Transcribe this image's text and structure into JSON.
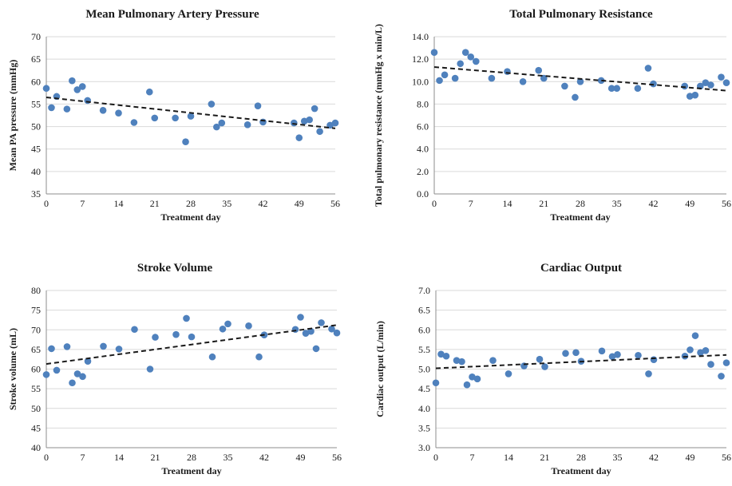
{
  "chart_data": [
    {
      "type": "scatter",
      "title": "Mean Pulmonary Artery Pressure",
      "xlabel": "Treatment day",
      "ylabel": "Mean PA pressure (mmHg)",
      "xlim": [
        0,
        56
      ],
      "ylim": [
        35,
        70
      ],
      "xticks": [
        0,
        7,
        14,
        21,
        28,
        35,
        42,
        49,
        56
      ],
      "xtick_labels": [
        "0",
        "7",
        "14",
        "21",
        "28",
        "35",
        "42",
        "49",
        "56"
      ],
      "yticks": [
        35,
        40,
        45,
        50,
        55,
        60,
        65,
        70
      ],
      "ytick_labels": [
        "35",
        "40",
        "45",
        "50",
        "55",
        "60",
        "65",
        "70"
      ],
      "grid": "horizontal",
      "x": [
        0,
        1,
        2,
        4,
        5,
        6,
        7,
        8,
        11,
        14,
        17,
        20,
        21,
        25,
        27,
        28,
        32,
        33,
        34,
        39,
        41,
        42,
        48,
        49,
        50,
        51,
        52,
        53,
        55,
        56
      ],
      "y": [
        58.5,
        54.2,
        56.7,
        53.9,
        60.2,
        58.2,
        58.9,
        55.8,
        53.6,
        53.0,
        50.9,
        57.7,
        51.9,
        51.9,
        46.6,
        52.3,
        55.0,
        49.9,
        50.8,
        50.4,
        54.6,
        51.0,
        50.8,
        47.5,
        51.2,
        51.5,
        54.0,
        48.9,
        50.3,
        50.8
      ],
      "trendline": {
        "x": [
          0,
          56
        ],
        "y": [
          56.5,
          49.6
        ]
      }
    },
    {
      "type": "scatter",
      "title": "Total Pulmonary Resistance",
      "xlabel": "Treatment day",
      "ylabel": "Total pulmonary resistance (mmHg x min/L)",
      "xlim": [
        0,
        56
      ],
      "ylim": [
        0,
        14
      ],
      "xticks": [
        0,
        7,
        14,
        21,
        28,
        35,
        42,
        49,
        56
      ],
      "xtick_labels": [
        "0",
        "7",
        "14",
        "21",
        "28",
        "35",
        "42",
        "49",
        "56"
      ],
      "yticks": [
        0,
        2,
        4,
        6,
        8,
        10,
        12,
        14
      ],
      "ytick_labels": [
        "0.0",
        "2.0",
        "4.0",
        "6.0",
        "8.0",
        "10.0",
        "12.0",
        "14.0"
      ],
      "grid": "horizontal",
      "x": [
        0,
        1,
        2,
        4,
        5,
        6,
        7,
        8,
        11,
        14,
        17,
        20,
        21,
        25,
        27,
        28,
        32,
        34,
        35,
        39,
        41,
        42,
        48,
        49,
        50,
        51,
        52,
        53,
        55,
        56
      ],
      "y": [
        12.6,
        10.1,
        10.6,
        10.3,
        11.6,
        12.6,
        12.2,
        11.8,
        10.3,
        10.9,
        10.0,
        11.0,
        10.3,
        9.6,
        8.6,
        10.0,
        10.1,
        9.4,
        9.4,
        9.4,
        11.2,
        9.8,
        9.6,
        8.7,
        8.8,
        9.6,
        9.9,
        9.7,
        10.4,
        9.9
      ],
      "trendline": {
        "x": [
          0,
          56
        ],
        "y": [
          11.3,
          9.2
        ]
      }
    },
    {
      "type": "scatter",
      "title": "Stroke Volume",
      "xlabel": "Treatment day",
      "ylabel": "Stroke volume (mL)",
      "xlim": [
        0,
        56
      ],
      "ylim": [
        40,
        80
      ],
      "xticks": [
        0,
        7,
        14,
        21,
        28,
        35,
        42,
        49,
        56
      ],
      "xtick_labels": [
        "0",
        "7",
        "14",
        "21",
        "28",
        "35",
        "42",
        "49",
        "56"
      ],
      "yticks": [
        40,
        45,
        50,
        55,
        60,
        65,
        70,
        75,
        80
      ],
      "ytick_labels": [
        "40",
        "45",
        "50",
        "55",
        "60",
        "65",
        "70",
        "75",
        "80"
      ],
      "grid": "horizontal",
      "x": [
        0,
        1,
        2,
        4,
        5,
        6,
        7,
        8,
        11,
        14,
        17,
        20,
        21,
        25,
        27,
        28,
        32,
        34,
        35,
        39,
        41,
        42,
        48,
        49,
        50,
        51,
        52,
        53,
        55,
        56
      ],
      "y": [
        58.6,
        65.2,
        59.7,
        65.7,
        56.5,
        58.8,
        58.1,
        62.0,
        65.8,
        65.1,
        70.1,
        60.0,
        68.1,
        68.8,
        72.9,
        68.2,
        63.1,
        70.2,
        71.5,
        71.0,
        63.1,
        68.7,
        70.1,
        73.2,
        69.1,
        69.6,
        65.2,
        71.8,
        70.2,
        69.2
      ],
      "trendline": {
        "x": [
          0,
          56
        ],
        "y": [
          61.3,
          71.2
        ]
      }
    },
    {
      "type": "scatter",
      "title": "Cardiac Output",
      "xlabel": "Treatment day",
      "ylabel": "Cardiac output (L/min)",
      "xlim": [
        0,
        56
      ],
      "ylim": [
        3.0,
        7.0
      ],
      "xticks": [
        0,
        7,
        14,
        21,
        28,
        35,
        42,
        49,
        56
      ],
      "xtick_labels": [
        "0",
        "7",
        "14",
        "21",
        "28",
        "35",
        "42",
        "49",
        "56"
      ],
      "yticks": [
        3.0,
        3.5,
        4.0,
        4.5,
        5.0,
        5.5,
        6.0,
        6.5,
        7.0
      ],
      "ytick_labels": [
        "3.0",
        "3.5",
        "4.0",
        "4.5",
        "5.0",
        "5.5",
        "6.0",
        "6.5",
        "7.0"
      ],
      "grid": "horizontal",
      "x": [
        0,
        1,
        2,
        4,
        5,
        6,
        7,
        8,
        11,
        14,
        17,
        20,
        21,
        25,
        27,
        28,
        32,
        34,
        35,
        39,
        41,
        42,
        48,
        49,
        50,
        51,
        52,
        53,
        55,
        56
      ],
      "y": [
        4.65,
        5.38,
        5.33,
        5.22,
        5.19,
        4.6,
        4.8,
        4.75,
        5.22,
        4.88,
        5.08,
        5.25,
        5.06,
        5.4,
        5.42,
        5.2,
        5.46,
        5.32,
        5.37,
        5.35,
        4.88,
        5.24,
        5.33,
        5.49,
        5.85,
        5.42,
        5.47,
        5.12,
        4.82,
        5.16
      ],
      "trendline": {
        "x": [
          0,
          56
        ],
        "y": [
          5.02,
          5.36
        ]
      }
    }
  ]
}
